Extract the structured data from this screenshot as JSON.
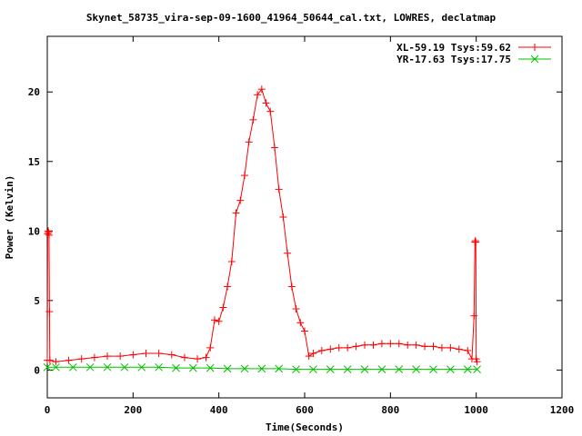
{
  "chart_data": {
    "type": "line",
    "title": "Skynet_58735_vira-sep-09-1600_41964_50644_cal.txt, LOWRES, declatmap",
    "xlabel": "Time(Seconds)",
    "ylabel": "Power (Kelvin)",
    "xlim": [
      0,
      1200
    ],
    "ylim": [
      -2,
      24
    ],
    "x_ticks": [
      0,
      200,
      400,
      600,
      800,
      1000,
      1200
    ],
    "y_ticks": [
      0,
      5,
      10,
      15,
      20
    ],
    "grid": false,
    "legend_position": "top-right",
    "series": [
      {
        "name": "XL-59.19 Tsys:59.62",
        "color": "#ff0000",
        "marker": "plus",
        "points": [
          [
            0,
            0.7
          ],
          [
            1,
            9.8
          ],
          [
            2,
            10.0
          ],
          [
            3,
            9.9
          ],
          [
            4,
            9.7
          ],
          [
            5,
            4.2
          ],
          [
            6,
            0.7
          ],
          [
            20,
            0.6
          ],
          [
            50,
            0.7
          ],
          [
            80,
            0.8
          ],
          [
            110,
            0.9
          ],
          [
            140,
            1.0
          ],
          [
            170,
            1.0
          ],
          [
            200,
            1.1
          ],
          [
            230,
            1.2
          ],
          [
            260,
            1.2
          ],
          [
            290,
            1.1
          ],
          [
            320,
            0.9
          ],
          [
            350,
            0.8
          ],
          [
            370,
            0.9
          ],
          [
            380,
            1.6
          ],
          [
            390,
            3.6
          ],
          [
            400,
            3.5
          ],
          [
            410,
            4.5
          ],
          [
            420,
            6.0
          ],
          [
            430,
            7.8
          ],
          [
            440,
            11.3
          ],
          [
            450,
            12.2
          ],
          [
            460,
            14.0
          ],
          [
            470,
            16.4
          ],
          [
            480,
            18.0
          ],
          [
            490,
            19.8
          ],
          [
            500,
            20.2
          ],
          [
            510,
            19.2
          ],
          [
            520,
            18.6
          ],
          [
            530,
            16.0
          ],
          [
            540,
            13.0
          ],
          [
            550,
            11.0
          ],
          [
            560,
            8.4
          ],
          [
            570,
            6.0
          ],
          [
            580,
            4.4
          ],
          [
            590,
            3.4
          ],
          [
            600,
            2.8
          ],
          [
            610,
            1.0
          ],
          [
            620,
            1.2
          ],
          [
            640,
            1.4
          ],
          [
            660,
            1.5
          ],
          [
            680,
            1.6
          ],
          [
            700,
            1.6
          ],
          [
            720,
            1.7
          ],
          [
            740,
            1.8
          ],
          [
            760,
            1.8
          ],
          [
            780,
            1.9
          ],
          [
            800,
            1.9
          ],
          [
            820,
            1.9
          ],
          [
            840,
            1.8
          ],
          [
            860,
            1.8
          ],
          [
            880,
            1.7
          ],
          [
            900,
            1.7
          ],
          [
            920,
            1.6
          ],
          [
            940,
            1.6
          ],
          [
            960,
            1.5
          ],
          [
            980,
            1.4
          ],
          [
            990,
            0.8
          ],
          [
            995,
            3.9
          ],
          [
            997,
            9.2
          ],
          [
            998,
            9.3
          ],
          [
            999,
            9.2
          ],
          [
            1000,
            0.8
          ],
          [
            1002,
            0.6
          ]
        ]
      },
      {
        "name": "YR-17.63 Tsys:17.75",
        "color": "#00c000",
        "marker": "cross",
        "points": [
          [
            0,
            0.2
          ],
          [
            20,
            0.2
          ],
          [
            60,
            0.2
          ],
          [
            100,
            0.2
          ],
          [
            140,
            0.2
          ],
          [
            180,
            0.2
          ],
          [
            220,
            0.2
          ],
          [
            260,
            0.2
          ],
          [
            300,
            0.15
          ],
          [
            340,
            0.15
          ],
          [
            380,
            0.15
          ],
          [
            420,
            0.1
          ],
          [
            460,
            0.1
          ],
          [
            500,
            0.1
          ],
          [
            540,
            0.1
          ],
          [
            580,
            0.05
          ],
          [
            620,
            0.05
          ],
          [
            660,
            0.05
          ],
          [
            700,
            0.05
          ],
          [
            740,
            0.05
          ],
          [
            780,
            0.05
          ],
          [
            820,
            0.05
          ],
          [
            860,
            0.05
          ],
          [
            900,
            0.05
          ],
          [
            940,
            0.05
          ],
          [
            980,
            0.05
          ],
          [
            1002,
            0.05
          ]
        ]
      }
    ]
  }
}
